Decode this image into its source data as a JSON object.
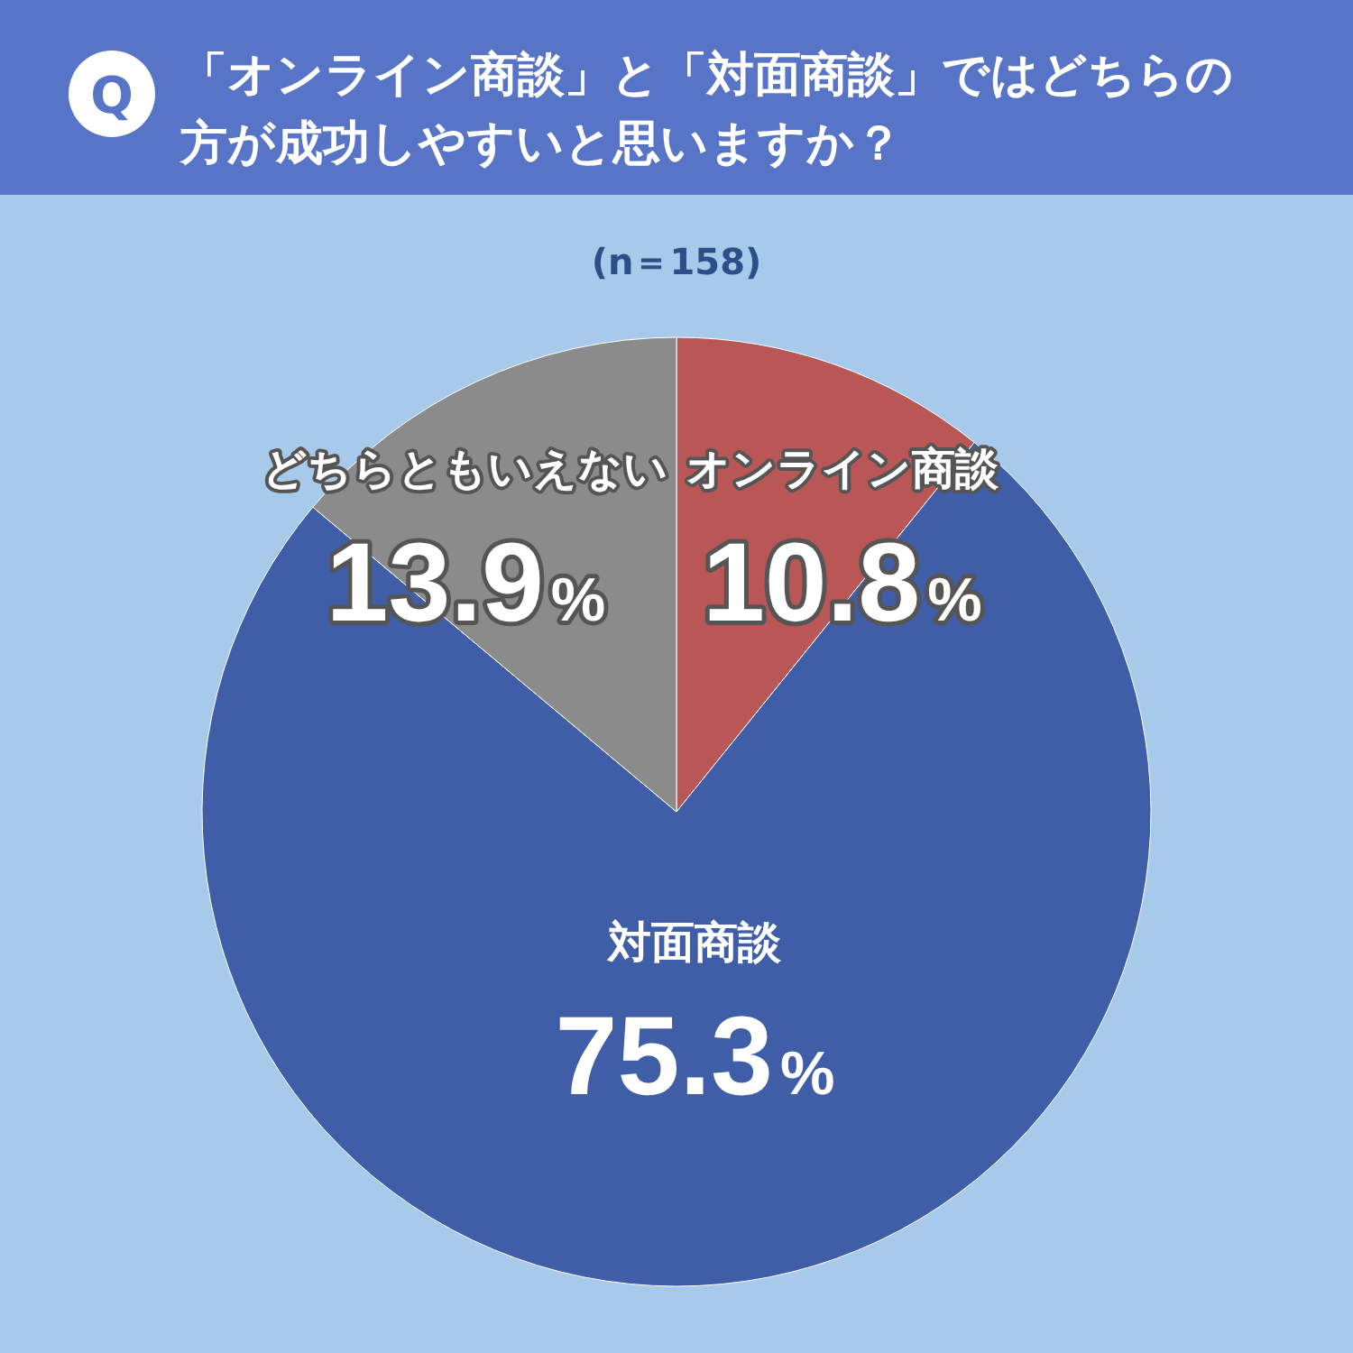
{
  "chart_data": {
    "type": "pie",
    "title": "「オンライン商談」と「対面商談」ではどちらの方が成功しやすいと思いますか？",
    "subtitle": "(n＝158)",
    "annotations": [
      "Q"
    ],
    "categories": [
      "オンライン商談",
      "対面商談",
      "どちらともいえない"
    ],
    "values": [
      10.8,
      75.3,
      13.9
    ],
    "colors": [
      "#b85755",
      "#405ea8",
      "#8b8b8b"
    ],
    "value_labels": [
      "10.8%",
      "75.3%",
      "13.9%"
    ]
  }
}
